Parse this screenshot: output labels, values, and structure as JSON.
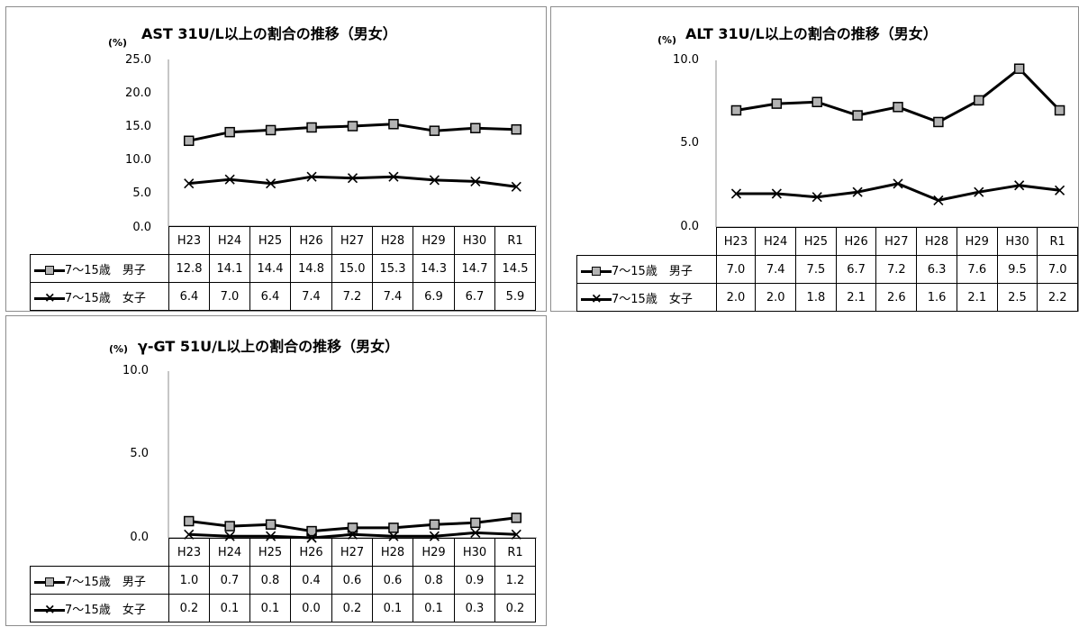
{
  "unit_label": "(%)",
  "colors": {
    "line": "#000000",
    "marker_fill": "#b3b3b3",
    "frame": "#8c8c8c"
  },
  "chart_data": [
    {
      "type": "line",
      "title": "AST 31U/L以上の割合の推移（男女）",
      "categories": [
        "H23",
        "H24",
        "H25",
        "H26",
        "H27",
        "H28",
        "H29",
        "H30",
        "R1"
      ],
      "ylim": [
        0,
        25
      ],
      "yticks": [
        "25.0",
        "20.0",
        "15.0",
        "10.0",
        "5.0",
        "0.0"
      ],
      "series": [
        {
          "name": "7～15歳　男子",
          "marker": "square",
          "values": [
            12.8,
            14.1,
            14.4,
            14.8,
            15.0,
            15.3,
            14.3,
            14.7,
            14.5
          ],
          "labels": [
            "12.8",
            "14.1",
            "14.4",
            "14.8",
            "15.0",
            "15.3",
            "14.3",
            "14.7",
            "14.5"
          ]
        },
        {
          "name": "7～15歳　女子",
          "marker": "x",
          "values": [
            6.4,
            7.0,
            6.4,
            7.4,
            7.2,
            7.4,
            6.9,
            6.7,
            5.9
          ],
          "labels": [
            "6.4",
            "7.0",
            "6.4",
            "7.4",
            "7.2",
            "7.4",
            "6.9",
            "6.7",
            "5.9"
          ]
        }
      ]
    },
    {
      "type": "line",
      "title": "ALT 31U/L以上の割合の推移（男女）",
      "categories": [
        "H23",
        "H24",
        "H25",
        "H26",
        "H27",
        "H28",
        "H29",
        "H30",
        "R1"
      ],
      "ylim": [
        0,
        10
      ],
      "yticks": [
        "10.0",
        "5.0",
        "0.0"
      ],
      "series": [
        {
          "name": "7～15歳　男子",
          "marker": "square",
          "values": [
            7.0,
            7.4,
            7.5,
            6.7,
            7.2,
            6.3,
            7.6,
            9.5,
            7.0
          ],
          "labels": [
            "7.0",
            "7.4",
            "7.5",
            "6.7",
            "7.2",
            "6.3",
            "7.6",
            "9.5",
            "7.0"
          ]
        },
        {
          "name": "7～15歳　女子",
          "marker": "x",
          "values": [
            2.0,
            2.0,
            1.8,
            2.1,
            2.6,
            1.6,
            2.1,
            2.5,
            2.2
          ],
          "labels": [
            "2.0",
            "2.0",
            "1.8",
            "2.1",
            "2.6",
            "1.6",
            "2.1",
            "2.5",
            "2.2"
          ]
        }
      ]
    },
    {
      "type": "line",
      "title": "γ-GT 51U/L以上の割合の推移（男女）",
      "categories": [
        "H23",
        "H24",
        "H25",
        "H26",
        "H27",
        "H28",
        "H29",
        "H30",
        "R1"
      ],
      "ylim": [
        0,
        10
      ],
      "yticks": [
        "10.0",
        "5.0",
        "0.0"
      ],
      "series": [
        {
          "name": "7～15歳　男子",
          "marker": "square",
          "values": [
            1.0,
            0.7,
            0.8,
            0.4,
            0.6,
            0.6,
            0.8,
            0.9,
            1.2
          ],
          "labels": [
            "1.0",
            "0.7",
            "0.8",
            "0.4",
            "0.6",
            "0.6",
            "0.8",
            "0.9",
            "1.2"
          ]
        },
        {
          "name": "7～15歳　女子",
          "marker": "x",
          "values": [
            0.2,
            0.1,
            0.1,
            0.0,
            0.2,
            0.1,
            0.1,
            0.3,
            0.2
          ],
          "labels": [
            "0.2",
            "0.1",
            "0.1",
            "0.0",
            "0.2",
            "0.1",
            "0.1",
            "0.3",
            "0.2"
          ]
        }
      ]
    }
  ]
}
